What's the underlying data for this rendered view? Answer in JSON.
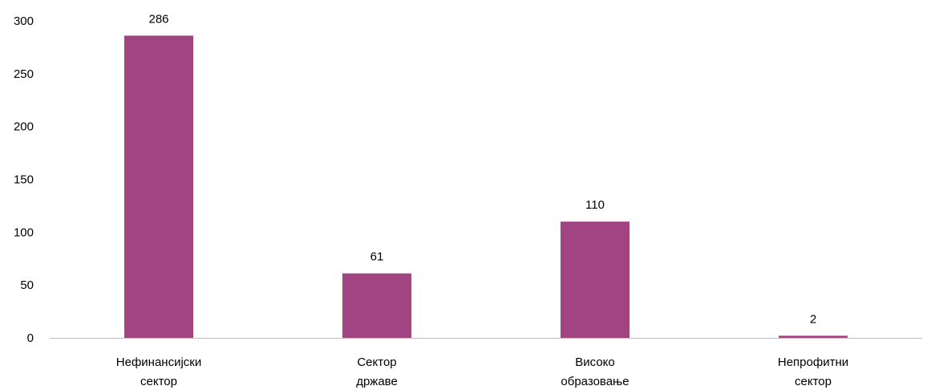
{
  "chart_data": {
    "type": "bar",
    "title": "",
    "xlabel": "",
    "ylabel": "",
    "categories": [
      [
        "Нефинансијски",
        "сектор"
      ],
      [
        "Сектор",
        "државе"
      ],
      [
        "Високо",
        "образовање"
      ],
      [
        "Непрофитни",
        "сектор"
      ]
    ],
    "values": [
      286,
      61,
      110,
      2
    ],
    "data_labels": [
      "286",
      "61",
      "110",
      "2"
    ],
    "y_ticks": [
      "0",
      "50",
      "100",
      "150",
      "200",
      "250",
      "300"
    ],
    "ylim": [
      0,
      300
    ],
    "grid": false,
    "legend": "none",
    "bar_color": "#A24482",
    "axis_color": "#BFBFBF"
  }
}
